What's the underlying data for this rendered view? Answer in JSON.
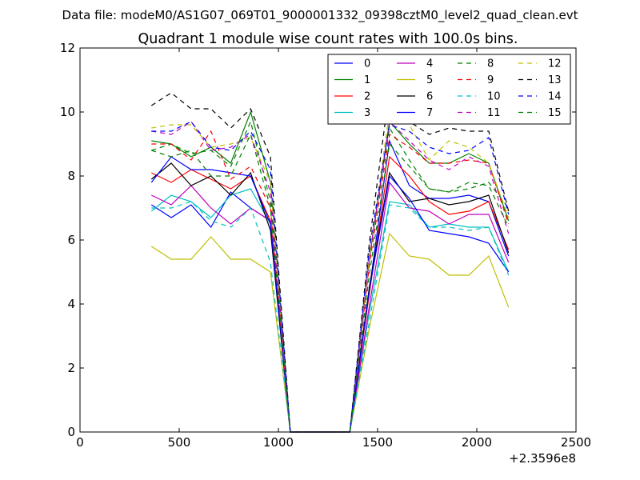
{
  "figure": {
    "suptitle": "Data file: modeM0/AS1G07_069T01_9000001332_09398cztM0_level2_quad_clean.evt"
  },
  "chart_data": {
    "type": "line",
    "title": "Quadrant 1 module wise count rates with 100.0s bins.",
    "xlabel": "",
    "ylabel": "",
    "xlim": [
      0,
      2500
    ],
    "ylim": [
      0,
      12
    ],
    "x_ticks": [
      0,
      500,
      1000,
      1500,
      2000,
      2500
    ],
    "y_ticks": [
      0,
      2,
      4,
      6,
      8,
      10,
      12
    ],
    "x_offset_label": "+2.3596e8",
    "grid": false,
    "legend": {
      "placement": "top-right",
      "columns": 4
    },
    "x": [
      360,
      460,
      560,
      660,
      760,
      860,
      960,
      1060,
      1160,
      1260,
      1360,
      1460,
      1560,
      1660,
      1760,
      1860,
      1960,
      2060,
      2160
    ],
    "series": [
      {
        "name": "0",
        "color": "#0000ff",
        "dash": "solid",
        "values": [
          7.1,
          6.7,
          7.1,
          6.4,
          7.5,
          7.0,
          6.6,
          0,
          0,
          0,
          0,
          4.5,
          9.1,
          7.7,
          7.3,
          7.3,
          7.4,
          7.2,
          5.5
        ]
      },
      {
        "name": "1",
        "color": "#008000",
        "dash": "solid",
        "values": [
          9.1,
          9.0,
          8.6,
          8.9,
          8.4,
          10.0,
          7.8,
          0,
          0,
          0,
          0,
          5.5,
          9.7,
          9.0,
          8.4,
          8.4,
          8.7,
          8.4,
          6.6
        ]
      },
      {
        "name": "2",
        "color": "#ff0000",
        "dash": "solid",
        "values": [
          8.1,
          7.8,
          8.2,
          7.9,
          7.6,
          8.0,
          6.6,
          0,
          0,
          0,
          0,
          4.4,
          8.6,
          8.0,
          7.2,
          6.8,
          6.9,
          7.2,
          5.7
        ]
      },
      {
        "name": "3",
        "color": "#00bfbf",
        "dash": "solid",
        "values": [
          6.9,
          7.4,
          7.2,
          6.7,
          7.4,
          7.6,
          6.5,
          0,
          0,
          0,
          0,
          3.8,
          7.2,
          7.1,
          6.4,
          6.5,
          6.4,
          6.4,
          5.0
        ]
      },
      {
        "name": "4",
        "color": "#bf00bf",
        "dash": "solid",
        "values": [
          7.4,
          7.1,
          7.7,
          7.0,
          6.5,
          7.0,
          6.6,
          0,
          0,
          0,
          0,
          4.0,
          7.8,
          7.0,
          6.9,
          6.5,
          6.8,
          6.8,
          5.3
        ]
      },
      {
        "name": "5",
        "color": "#bfbf00",
        "dash": "solid",
        "values": [
          5.8,
          5.4,
          5.4,
          6.1,
          5.4,
          5.4,
          5.0,
          0,
          0,
          0,
          0,
          3.3,
          6.2,
          5.5,
          5.4,
          4.9,
          4.9,
          5.5,
          3.9
        ]
      },
      {
        "name": "6",
        "color": "#000000",
        "dash": "solid",
        "values": [
          7.9,
          8.4,
          7.7,
          8.0,
          7.4,
          8.1,
          6.3,
          0,
          0,
          0,
          0,
          4.6,
          8.1,
          7.2,
          7.3,
          7.1,
          7.2,
          7.4,
          5.6
        ]
      },
      {
        "name": "7",
        "color": "#0000ff",
        "dash": "solid",
        "values": [
          7.8,
          8.6,
          8.2,
          8.2,
          8.1,
          8.0,
          6.5,
          0,
          0,
          0,
          0,
          4.5,
          8.0,
          7.3,
          6.3,
          6.2,
          6.1,
          5.9,
          5.0
        ]
      },
      {
        "name": "8",
        "color": "#008000",
        "dash": "dashed",
        "values": [
          8.8,
          9.0,
          8.7,
          8.8,
          8.3,
          9.7,
          7.2,
          0,
          0,
          0,
          0,
          5.5,
          9.5,
          8.5,
          7.6,
          7.5,
          7.6,
          7.8,
          7.0
        ]
      },
      {
        "name": "9",
        "color": "#ff0000",
        "dash": "dashed",
        "values": [
          9.0,
          9.0,
          8.5,
          9.4,
          7.9,
          8.3,
          7.0,
          0,
          0,
          0,
          0,
          5.3,
          9.3,
          8.9,
          8.4,
          8.4,
          8.5,
          8.4,
          6.5
        ]
      },
      {
        "name": "10",
        "color": "#00bfbf",
        "dash": "dashed",
        "values": [
          7.0,
          7.0,
          7.2,
          6.6,
          6.4,
          7.0,
          5.3,
          0,
          0,
          0,
          0,
          3.5,
          7.1,
          7.0,
          6.4,
          6.4,
          6.3,
          6.4,
          4.9
        ]
      },
      {
        "name": "11",
        "color": "#bf00bf",
        "dash": "dashed",
        "values": [
          9.4,
          9.3,
          9.7,
          8.8,
          8.9,
          9.3,
          7.5,
          0,
          0,
          0,
          0,
          5.5,
          9.7,
          9.1,
          8.5,
          8.2,
          8.6,
          8.3,
          6.2
        ]
      },
      {
        "name": "12",
        "color": "#bfbf00",
        "dash": "dashed",
        "values": [
          9.5,
          9.6,
          9.6,
          8.9,
          9.0,
          9.2,
          7.8,
          0,
          0,
          0,
          0,
          5.6,
          10.0,
          9.6,
          8.5,
          9.1,
          8.9,
          8.4,
          6.7
        ]
      },
      {
        "name": "13",
        "color": "#000000",
        "dash": "dashed",
        "values": [
          10.2,
          10.6,
          10.1,
          10.1,
          9.5,
          10.1,
          8.6,
          0,
          0,
          0,
          0,
          6.0,
          10.7,
          9.7,
          9.3,
          9.5,
          9.4,
          9.4,
          6.9
        ]
      },
      {
        "name": "14",
        "color": "#0000ff",
        "dash": "dashed",
        "values": [
          9.4,
          9.4,
          9.7,
          8.9,
          8.8,
          9.4,
          8.2,
          0,
          0,
          0,
          0,
          5.8,
          9.6,
          9.4,
          8.9,
          8.7,
          8.8,
          9.2,
          6.8
        ]
      },
      {
        "name": "15",
        "color": "#008000",
        "dash": "dashed",
        "values": [
          8.8,
          8.6,
          8.8,
          8.0,
          8.0,
          9.3,
          7.0,
          0,
          0,
          0,
          0,
          5.0,
          9.0,
          8.3,
          7.6,
          7.5,
          7.8,
          7.7,
          6.4
        ]
      }
    ]
  }
}
